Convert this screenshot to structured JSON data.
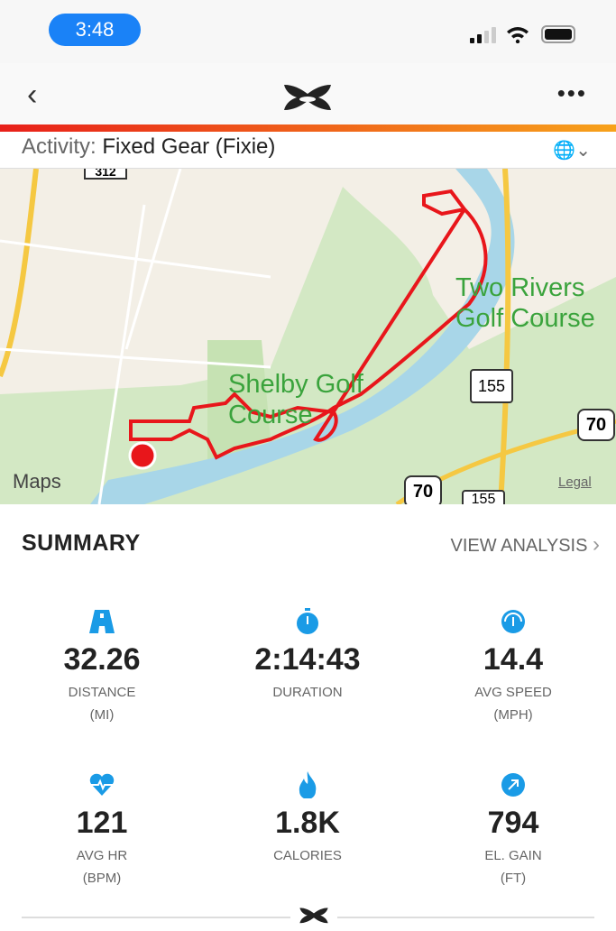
{
  "status_bar": {
    "time": "3:48"
  },
  "nav": {
    "back": "‹",
    "more": "•••"
  },
  "activity": {
    "label": "Activity:",
    "value": "Fixed Gear (Fixie)"
  },
  "map": {
    "labels": {
      "two_rivers": "Two Rivers",
      "golf_course": "Golf Course",
      "shelby": "Shelby Golf",
      "shelby2": "Course",
      "route_155": "155",
      "route_70": "70",
      "route_155b": "155",
      "legal": "Legal",
      "maps": "Maps",
      "road_top": "312"
    },
    "route_color": "#e8161b"
  },
  "summary": {
    "title": "SUMMARY",
    "view_analysis": "VIEW ANALYSIS",
    "stats": [
      {
        "icon": "road-icon",
        "value": "32.26",
        "label": "DISTANCE",
        "unit": "(MI)"
      },
      {
        "icon": "stopwatch-icon",
        "value": "2:14:43",
        "label": "DURATION",
        "unit": ""
      },
      {
        "icon": "speedometer-icon",
        "value": "14.4",
        "label": "AVG SPEED",
        "unit": "(MPH)"
      },
      {
        "icon": "heart-rate-icon",
        "value": "121",
        "label": "AVG HR",
        "unit": "(BPM)"
      },
      {
        "icon": "flame-icon",
        "value": "1.8K",
        "label": "CALORIES",
        "unit": ""
      },
      {
        "icon": "elevation-arrow-icon",
        "value": "794",
        "label": "EL. GAIN",
        "unit": "(FT)"
      }
    ]
  },
  "colors": {
    "accent": "#1a9be6",
    "brand_gradient_start": "#e8201a",
    "brand_gradient_end": "#f7a21b"
  }
}
